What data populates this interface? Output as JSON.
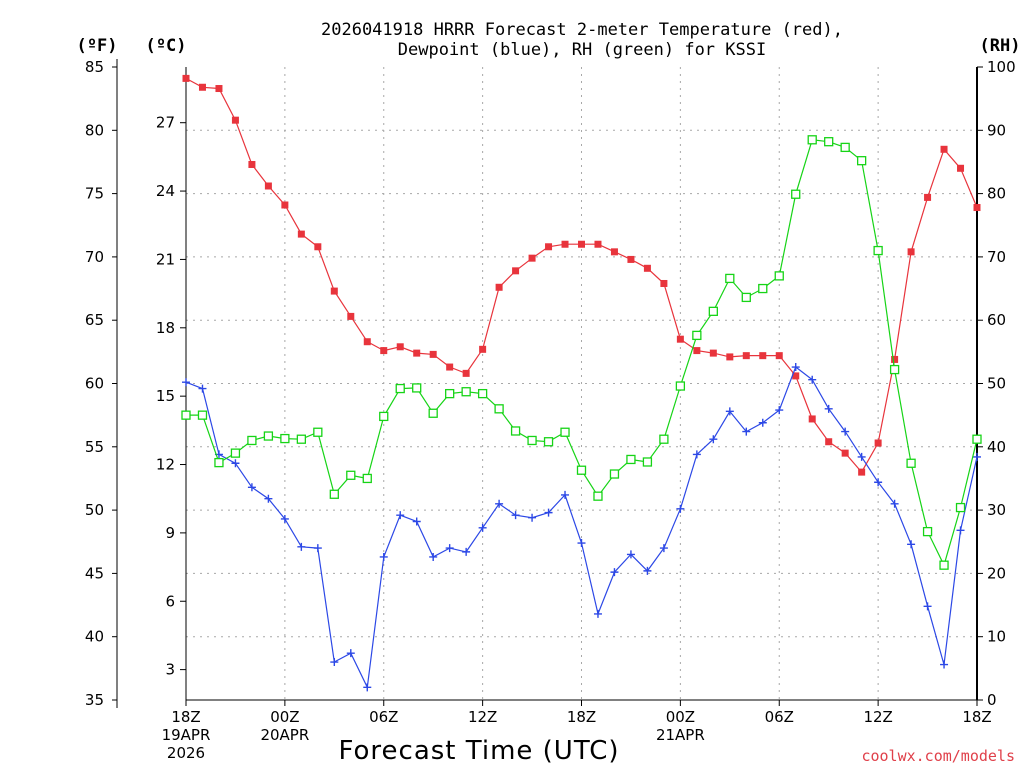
{
  "title": {
    "line1": "2026041918 HRRR Forecast 2-meter Temperature (red),",
    "line2": "Dewpoint (blue), RH (green) for KSSI"
  },
  "axes": {
    "left_f_unit": "(ºF)",
    "left_c_unit": "(ºC)",
    "right_rh_unit": "(RH)",
    "xlabel": "Forecast Time (UTC)"
  },
  "credit": "coolwx.com/models",
  "chart_data": {
    "type": "line",
    "title": "2026041918 HRRR Forecast 2-meter Temperature (red), Dewpoint (blue), RH (green) for KSSI",
    "xlabel": "Forecast Time (UTC)",
    "x": [
      0,
      1,
      2,
      3,
      4,
      5,
      6,
      7,
      8,
      9,
      10,
      11,
      12,
      13,
      14,
      15,
      16,
      17,
      18,
      19,
      20,
      21,
      22,
      23,
      24,
      25,
      26,
      27,
      28,
      29,
      30,
      31,
      32,
      33,
      34,
      35,
      36,
      37,
      38,
      39,
      40,
      41,
      42,
      43,
      44,
      45,
      46,
      47,
      48
    ],
    "xlim": [
      0,
      48
    ],
    "x_ticks": [
      {
        "x": 0,
        "lines": [
          "18Z",
          "19APR",
          "2026"
        ]
      },
      {
        "x": 6,
        "lines": [
          "00Z",
          "20APR"
        ]
      },
      {
        "x": 12,
        "lines": [
          "06Z"
        ]
      },
      {
        "x": 18,
        "lines": [
          "12Z"
        ]
      },
      {
        "x": 24,
        "lines": [
          "18Z"
        ]
      },
      {
        "x": 30,
        "lines": [
          "00Z",
          "21APR"
        ]
      },
      {
        "x": 36,
        "lines": [
          "06Z"
        ]
      },
      {
        "x": 42,
        "lines": [
          "12Z"
        ]
      },
      {
        "x": 48,
        "lines": [
          "18Z"
        ]
      }
    ],
    "y_left_f": {
      "label": "(ºF)",
      "lim": [
        35,
        85
      ],
      "ticks": [
        "35",
        "40",
        "45",
        "50",
        "55",
        "60",
        "65",
        "70",
        "75",
        "80",
        "85"
      ]
    },
    "y_left_c": {
      "label": "(ºC)",
      "ticks": [
        "3",
        "6",
        "9",
        "12",
        "15",
        "18",
        "21",
        "24",
        "27"
      ]
    },
    "y_right_rh": {
      "label": "(RH)",
      "lim": [
        0,
        100
      ],
      "ticks": [
        "0",
        "10",
        "20",
        "30",
        "40",
        "50",
        "60",
        "70",
        "80",
        "90",
        "100"
      ]
    },
    "series": [
      {
        "name": "Temperature",
        "axis": "F",
        "color": "#e8343c",
        "marker": "filled-square",
        "values": [
          84.1,
          83.4,
          83.3,
          80.8,
          77.3,
          75.6,
          74.1,
          71.8,
          70.8,
          67.3,
          65.3,
          63.3,
          62.6,
          62.9,
          62.4,
          62.3,
          61.3,
          60.8,
          62.7,
          67.6,
          68.9,
          69.9,
          70.8,
          71.0,
          71.0,
          71.0,
          70.4,
          69.8,
          69.1,
          67.9,
          63.5,
          62.6,
          62.4,
          62.1,
          62.2,
          62.2,
          62.2,
          60.6,
          57.2,
          55.4,
          54.5,
          53.0,
          55.3,
          61.9,
          70.4,
          74.7,
          78.5,
          77.0,
          73.9
        ]
      },
      {
        "name": "Dewpoint",
        "axis": "F",
        "color": "#2c48e6",
        "marker": "plus",
        "values": [
          60.1,
          59.6,
          54.4,
          53.7,
          51.8,
          50.9,
          49.3,
          47.1,
          47.0,
          38.0,
          38.7,
          36.0,
          46.3,
          49.6,
          49.1,
          46.3,
          47.0,
          46.7,
          48.6,
          50.5,
          49.6,
          49.4,
          49.8,
          51.2,
          47.4,
          41.8,
          45.1,
          46.5,
          45.2,
          47.0,
          50.1,
          54.4,
          55.6,
          57.8,
          56.2,
          56.9,
          57.9,
          61.3,
          60.3,
          58.0,
          56.2,
          54.2,
          52.2,
          50.5,
          47.3,
          42.4,
          37.8,
          48.4,
          54.2
        ]
      },
      {
        "name": "RH",
        "axis": "RH",
        "color": "#16d416",
        "marker": "open-square",
        "values": [
          45.0,
          45.0,
          37.5,
          39.0,
          41.0,
          41.7,
          41.3,
          41.2,
          42.3,
          32.5,
          35.5,
          35.0,
          44.8,
          49.2,
          49.3,
          45.3,
          48.4,
          48.7,
          48.4,
          46.0,
          42.5,
          41.0,
          40.8,
          42.3,
          36.3,
          32.2,
          35.7,
          38.0,
          37.6,
          41.2,
          49.6,
          57.6,
          61.4,
          66.6,
          63.6,
          65.0,
          67.0,
          79.9,
          88.5,
          88.2,
          87.3,
          85.2,
          71.0,
          52.2,
          37.4,
          26.6,
          21.3,
          30.4,
          41.2
        ]
      }
    ]
  }
}
